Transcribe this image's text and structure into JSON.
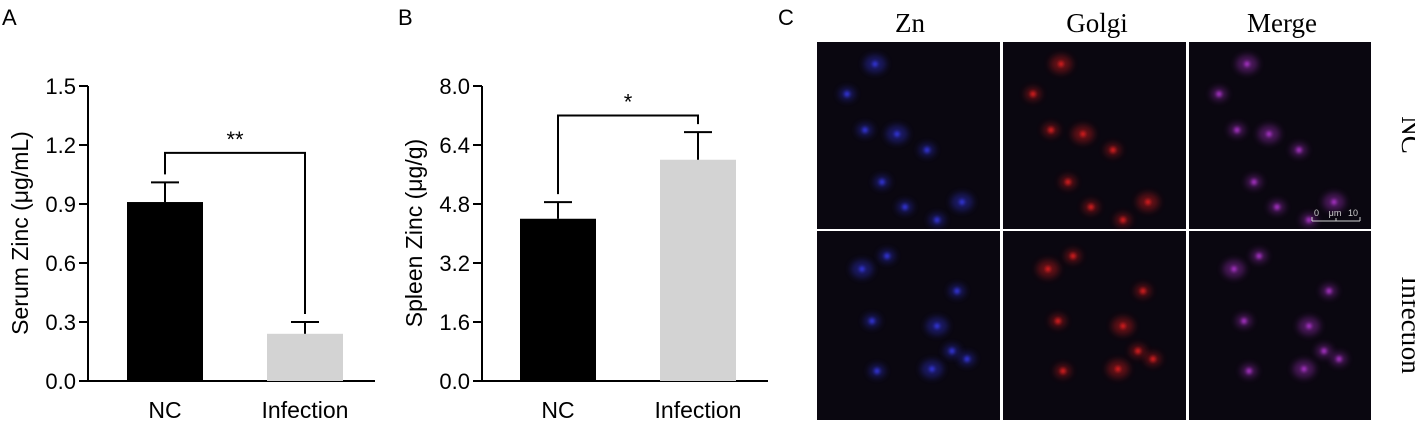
{
  "panels": {
    "a": {
      "letter": "A"
    },
    "b": {
      "letter": "B"
    },
    "c": {
      "letter": "C"
    }
  },
  "chart_data": [
    {
      "type": "bar",
      "panel": "A",
      "categories": [
        "NC",
        "Infection"
      ],
      "values": [
        0.91,
        0.24
      ],
      "errors": [
        0.1,
        0.06
      ],
      "colors": [
        "#000000",
        "#d3d3d3"
      ],
      "title": "",
      "xlabel": "",
      "ylabel": "Serum Zinc (μg/mL)",
      "ylim": [
        0,
        1.5
      ],
      "yticks": [
        0.0,
        0.3,
        0.6,
        0.9,
        1.2,
        1.5
      ],
      "ytick_labels": [
        "0.0",
        "0.3",
        "0.6",
        "0.9",
        "1.2",
        "1.5"
      ],
      "significance": {
        "label": "**",
        "y": 1.16
      },
      "grid": false
    },
    {
      "type": "bar",
      "panel": "B",
      "categories": [
        "NC",
        "Infection"
      ],
      "values": [
        4.4,
        6.0
      ],
      "errors": [
        0.45,
        0.75
      ],
      "colors": [
        "#000000",
        "#d3d3d3"
      ],
      "title": "",
      "xlabel": "",
      "ylabel": "Spleen Zinc (μg/g)",
      "ylim": [
        0,
        8.0
      ],
      "yticks": [
        0.0,
        1.6,
        3.2,
        4.8,
        6.4,
        8.0
      ],
      "ytick_labels": [
        "0.0",
        "1.6",
        "3.2",
        "4.8",
        "6.4",
        "8.0"
      ],
      "significance": {
        "label": "*",
        "y": 7.2
      },
      "grid": false
    }
  ],
  "micrograph": {
    "columns": [
      "Zn",
      "Golgi",
      "Merge"
    ],
    "rows": [
      "NC",
      "Infection"
    ],
    "scale_bar": {
      "start": "0",
      "unit": "μm",
      "end": "10"
    }
  }
}
